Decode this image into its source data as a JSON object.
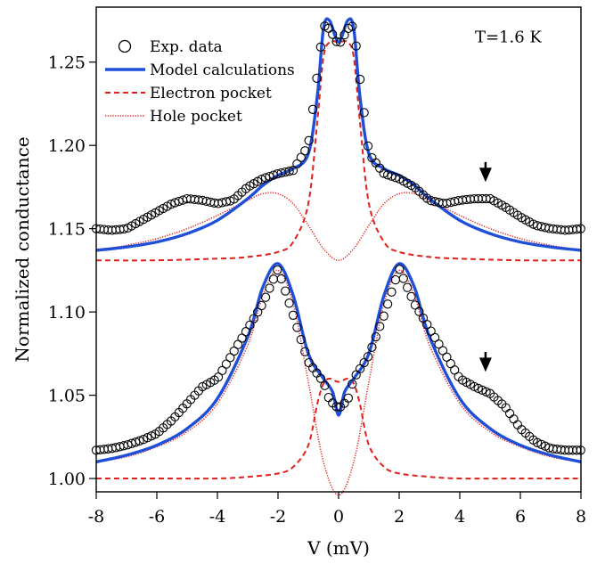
{
  "chart_data": {
    "type": "line",
    "title": "",
    "xlabel": "V (mV)",
    "ylabel": "Normalized conductance",
    "xlim": [
      -8,
      8
    ],
    "ylim": [
      0.992,
      1.283
    ],
    "x_ticks": [
      "-8",
      "-6",
      "-4",
      "-2",
      "0",
      "2",
      "4",
      "6",
      "8"
    ],
    "y_ticks": [
      "1.00",
      "1.05",
      "1.10",
      "1.15",
      "1.20",
      "1.25"
    ],
    "legend_position": "top-left",
    "legend": [
      {
        "label": "Exp. data",
        "style": "open-circle",
        "color": "#000000"
      },
      {
        "label": "Model calculations",
        "style": "solid",
        "color": "#1f4fd8"
      },
      {
        "label": "Electron pocket",
        "style": "dashed",
        "color": "#e0201b"
      },
      {
        "label": "Hole pocket",
        "style": "dotted",
        "color": "#e0201b"
      }
    ],
    "annotations": [
      {
        "text": "T=1.6 K",
        "x": 5.6,
        "y": 1.262
      },
      {
        "type": "arrow",
        "x": 4.85,
        "y_from": 1.19,
        "y_to": 1.178
      },
      {
        "type": "arrow",
        "x": 4.85,
        "y_from": 1.076,
        "y_to": 1.064
      }
    ],
    "series": [
      {
        "name": "Exp. data",
        "style": "open-circle",
        "color": "#000000",
        "curves": [
          {
            "x": [
              -8,
              -7.5,
              -7,
              -6.5,
              -6,
              -5.5,
              -5,
              -4.5,
              -4,
              -3.5,
              -3,
              -2.5,
              -2,
              -1.5,
              -1,
              -0.5,
              -0.3,
              0,
              0.3,
              0.5,
              1,
              1.5,
              2,
              2.5,
              3,
              3.5,
              4,
              4.5,
              5,
              5.5,
              6,
              6.5,
              7,
              7.5,
              8
            ],
            "y": [
              1.15,
              1.149,
              1.15,
              1.155,
              1.16,
              1.165,
              1.168,
              1.167,
              1.165,
              1.167,
              1.175,
              1.18,
              1.183,
              1.185,
              1.2,
              1.272,
              1.27,
              1.26,
              1.27,
              1.272,
              1.195,
              1.183,
              1.18,
              1.175,
              1.167,
              1.165,
              1.167,
              1.168,
              1.168,
              1.163,
              1.157,
              1.152,
              1.15,
              1.149,
              1.15
            ]
          },
          {
            "x": [
              -8,
              -7.5,
              -7,
              -6.5,
              -6,
              -5.5,
              -5,
              -4.5,
              -4,
              -3.5,
              -3,
              -2.5,
              -2,
              -1.5,
              -1,
              -0.5,
              -0.3,
              0,
              0.3,
              0.5,
              1,
              1.5,
              2,
              2.5,
              3,
              3.5,
              4,
              4.5,
              5,
              5.5,
              6,
              6.5,
              7,
              7.5,
              8
            ],
            "y": [
              1.017,
              1.018,
              1.02,
              1.023,
              1.027,
              1.035,
              1.045,
              1.055,
              1.06,
              1.075,
              1.09,
              1.105,
              1.126,
              1.098,
              1.07,
              1.058,
              1.047,
              1.042,
              1.047,
              1.06,
              1.074,
              1.098,
              1.126,
              1.105,
              1.09,
              1.075,
              1.06,
              1.055,
              1.051,
              1.043,
              1.03,
              1.022,
              1.018,
              1.017,
              1.017
            ]
          }
        ]
      },
      {
        "name": "Model calculations",
        "style": "solid",
        "color": "#1f4fd8",
        "curves": [
          {
            "x": [
              -8,
              -7,
              -6,
              -5,
              -4,
              -3,
              -2.5,
              -2,
              -1.5,
              -1,
              -0.7,
              -0.5,
              -0.3,
              0,
              0.3,
              0.5,
              0.7,
              1,
              1.5,
              2,
              2.5,
              3,
              4,
              5,
              6,
              7,
              8
            ],
            "y": [
              1.137,
              1.139,
              1.142,
              1.147,
              1.155,
              1.168,
              1.176,
              1.182,
              1.186,
              1.195,
              1.23,
              1.27,
              1.275,
              1.262,
              1.275,
              1.27,
              1.23,
              1.195,
              1.186,
              1.182,
              1.176,
              1.168,
              1.155,
              1.147,
              1.142,
              1.139,
              1.137
            ]
          },
          {
            "x": [
              -8,
              -7,
              -6,
              -5,
              -4,
              -3,
              -2.5,
              -2,
              -1.5,
              -1,
              -0.5,
              -0.2,
              0,
              0.2,
              0.5,
              1,
              1.5,
              2,
              2.5,
              3,
              4,
              5,
              6,
              7,
              8
            ],
            "y": [
              1.01,
              1.014,
              1.02,
              1.03,
              1.048,
              1.085,
              1.115,
              1.129,
              1.11,
              1.075,
              1.06,
              1.052,
              1.038,
              1.052,
              1.06,
              1.075,
              1.11,
              1.129,
              1.115,
              1.085,
              1.048,
              1.03,
              1.02,
              1.014,
              1.01
            ]
          }
        ]
      },
      {
        "name": "Electron pocket",
        "style": "dashed",
        "color": "#e0201b",
        "curves": [
          {
            "x": [
              -8,
              -6,
              -4,
              -3,
              -2,
              -1.5,
              -1,
              -0.7,
              -0.5,
              -0.3,
              0,
              0.3,
              0.5,
              0.7,
              1,
              1.5,
              2,
              3,
              4,
              6,
              8
            ],
            "y": [
              1.131,
              1.131,
              1.132,
              1.133,
              1.136,
              1.142,
              1.165,
              1.215,
              1.253,
              1.262,
              1.262,
              1.262,
              1.253,
              1.215,
              1.165,
              1.142,
              1.136,
              1.133,
              1.132,
              1.131,
              1.131
            ]
          },
          {
            "x": [
              -8,
              -6,
              -4,
              -3,
              -2,
              -1.5,
              -1,
              -0.7,
              -0.5,
              -0.3,
              0,
              0.3,
              0.5,
              0.7,
              1,
              1.5,
              2,
              3,
              4,
              6,
              8
            ],
            "y": [
              1.0,
              1.0,
              1.0,
              1.001,
              1.003,
              1.007,
              1.02,
              1.045,
              1.057,
              1.06,
              1.058,
              1.06,
              1.057,
              1.045,
              1.02,
              1.007,
              1.003,
              1.001,
              1.0,
              1.0,
              1.0
            ]
          }
        ]
      },
      {
        "name": "Hole pocket",
        "style": "dotted",
        "color": "#e0201b",
        "curves": [
          {
            "x": [
              -8,
              -7,
              -6,
              -5,
              -4,
              -3,
              -2.5,
              -2,
              -1.5,
              -1,
              -0.5,
              0,
              0.5,
              1,
              1.5,
              2,
              2.5,
              3,
              4,
              5,
              6,
              7,
              8
            ],
            "y": [
              1.137,
              1.14,
              1.144,
              1.15,
              1.158,
              1.167,
              1.171,
              1.171,
              1.165,
              1.152,
              1.138,
              1.131,
              1.138,
              1.152,
              1.165,
              1.171,
              1.171,
              1.167,
              1.158,
              1.15,
              1.144,
              1.14,
              1.137
            ]
          },
          {
            "x": [
              -8,
              -7,
              -6,
              -5,
              -4,
              -3,
              -2.5,
              -2,
              -1.5,
              -1,
              -0.5,
              0,
              0.5,
              1,
              1.5,
              2,
              2.5,
              3,
              4,
              5,
              6,
              7,
              8
            ],
            "y": [
              1.01,
              1.013,
              1.019,
              1.028,
              1.045,
              1.08,
              1.11,
              1.125,
              1.105,
              1.058,
              1.01,
              0.99,
              1.01,
              1.058,
              1.105,
              1.125,
              1.11,
              1.08,
              1.045,
              1.028,
              1.019,
              1.013,
              1.01
            ]
          }
        ]
      }
    ]
  }
}
